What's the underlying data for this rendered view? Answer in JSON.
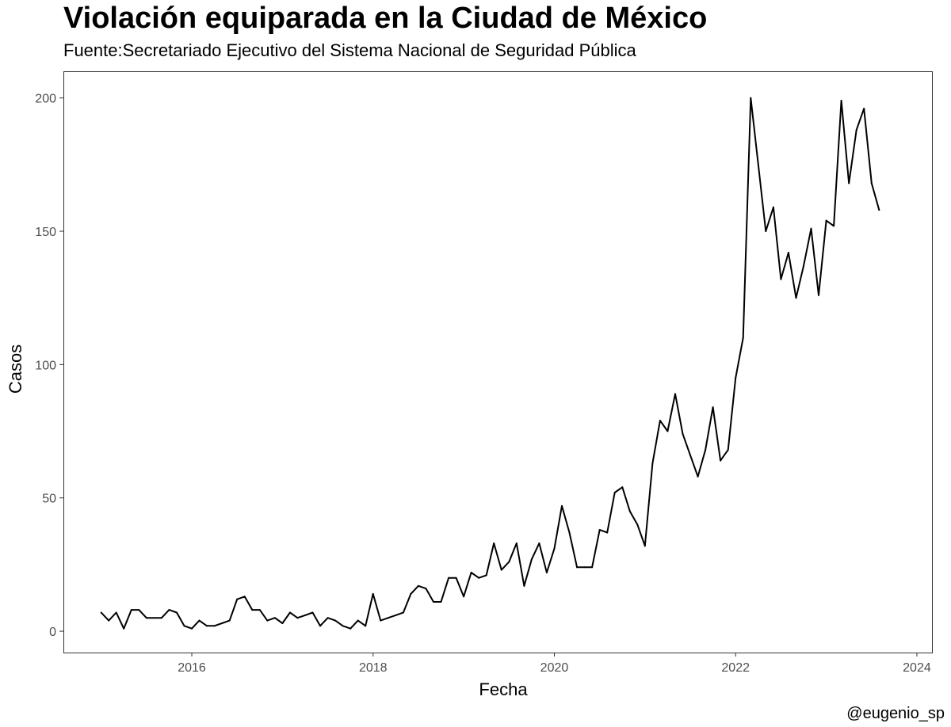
{
  "chart_data": {
    "type": "line",
    "title": "Violación equiparada en la Ciudad de México",
    "subtitle": "Fuente:Secretariado Ejecutivo del Sistema Nacional de Seguridad Pública",
    "caption": "@eugenio_sp",
    "xlabel": "Fecha",
    "ylabel": "Casos",
    "x_ticks": [
      "2016",
      "2018",
      "2020",
      "2022",
      "2024"
    ],
    "y_ticks": [
      "0",
      "50",
      "100",
      "150",
      "200"
    ],
    "xlim": [
      "2014-08",
      "2024-03"
    ],
    "ylim": [
      -8,
      210
    ],
    "grid": false,
    "line_color": "#000000",
    "series": [
      {
        "start": "2015-01",
        "frequency": "monthly",
        "x": [
          "2015-01",
          "2015-02",
          "2015-03",
          "2015-04",
          "2015-05",
          "2015-06",
          "2015-07",
          "2015-08",
          "2015-09",
          "2015-10",
          "2015-11",
          "2015-12",
          "2016-01",
          "2016-02",
          "2016-03",
          "2016-04",
          "2016-05",
          "2016-06",
          "2016-07",
          "2016-08",
          "2016-09",
          "2016-10",
          "2016-11",
          "2016-12",
          "2017-01",
          "2017-02",
          "2017-03",
          "2017-04",
          "2017-05",
          "2017-06",
          "2017-07",
          "2017-08",
          "2017-09",
          "2017-10",
          "2017-11",
          "2017-12",
          "2018-01",
          "2018-02",
          "2018-03",
          "2018-04",
          "2018-05",
          "2018-06",
          "2018-07",
          "2018-08",
          "2018-09",
          "2018-10",
          "2018-11",
          "2018-12",
          "2019-01",
          "2019-02",
          "2019-03",
          "2019-04",
          "2019-05",
          "2019-06",
          "2019-07",
          "2019-08",
          "2019-09",
          "2019-10",
          "2019-11",
          "2019-12",
          "2020-01",
          "2020-02",
          "2020-03",
          "2020-04",
          "2020-05",
          "2020-06",
          "2020-07",
          "2020-08",
          "2020-09",
          "2020-10",
          "2020-11",
          "2020-12",
          "2021-01",
          "2021-02",
          "2021-03",
          "2021-04",
          "2021-05",
          "2021-06",
          "2021-07",
          "2021-08",
          "2021-09",
          "2021-10",
          "2021-11",
          "2021-12",
          "2022-01",
          "2022-02",
          "2022-03",
          "2022-04",
          "2022-05",
          "2022-06",
          "2022-07",
          "2022-08",
          "2022-09",
          "2022-10",
          "2022-11",
          "2022-12",
          "2023-01",
          "2023-02",
          "2023-03",
          "2023-04",
          "2023-05",
          "2023-06",
          "2023-07",
          "2023-08"
        ],
        "values": [
          7,
          4,
          7,
          1,
          8,
          8,
          5,
          5,
          5,
          8,
          7,
          2,
          1,
          4,
          2,
          2,
          3,
          4,
          12,
          13,
          8,
          8,
          4,
          5,
          3,
          7,
          5,
          6,
          7,
          2,
          5,
          4,
          2,
          1,
          4,
          2,
          14,
          4,
          5,
          6,
          7,
          14,
          17,
          16,
          11,
          11,
          20,
          20,
          13,
          22,
          20,
          21,
          33,
          23,
          26,
          33,
          17,
          27,
          33,
          22,
          31,
          47,
          37,
          24,
          24,
          24,
          38,
          37,
          52,
          54,
          45,
          40,
          32,
          63,
          79,
          75,
          89,
          74,
          66,
          58,
          68,
          84,
          64,
          68,
          95,
          110,
          200,
          175,
          150,
          159,
          132,
          142,
          125,
          137,
          151,
          126,
          154,
          152,
          199,
          168,
          188,
          196,
          168,
          158
        ]
      }
    ]
  }
}
